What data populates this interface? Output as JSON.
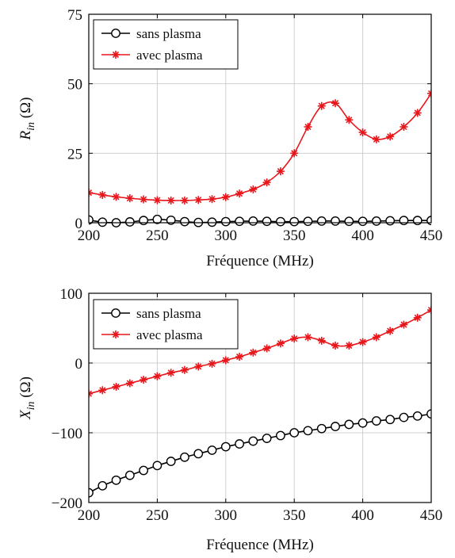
{
  "chart_data": [
    {
      "type": "line",
      "xlabel": "Fréquence (MHz)",
      "ylabel_var": "R",
      "ylabel_sub": "in",
      "ylabel_unit": " (Ω)",
      "xlim": [
        200,
        450
      ],
      "ylim": [
        0,
        75
      ],
      "xticks": [
        200,
        250,
        300,
        350,
        400,
        450
      ],
      "yticks": [
        0,
        25,
        50,
        75
      ],
      "grid": true,
      "legend_position": "top-left",
      "series": [
        {
          "name": "sans plasma",
          "color": "#000000",
          "marker": "circle",
          "x": [
            200,
            210,
            220,
            230,
            240,
            250,
            260,
            270,
            280,
            290,
            300,
            310,
            320,
            330,
            340,
            350,
            360,
            370,
            380,
            390,
            400,
            410,
            420,
            430,
            440,
            450
          ],
          "y": [
            1.0,
            0.2,
            0.0,
            0.3,
            0.8,
            1.2,
            0.9,
            0.4,
            0.1,
            0.2,
            0.4,
            0.5,
            0.6,
            0.5,
            0.4,
            0.4,
            0.5,
            0.6,
            0.6,
            0.5,
            0.5,
            0.6,
            0.7,
            0.8,
            0.8,
            0.8
          ]
        },
        {
          "name": "avec plasma",
          "color": "#e8161b",
          "marker": "star",
          "x": [
            200,
            210,
            220,
            230,
            240,
            250,
            260,
            270,
            280,
            290,
            300,
            310,
            320,
            330,
            340,
            350,
            360,
            370,
            380,
            390,
            400,
            410,
            420,
            430,
            440,
            450
          ],
          "y": [
            10.8,
            10.0,
            9.3,
            8.8,
            8.4,
            8.1,
            8.0,
            8.0,
            8.2,
            8.5,
            9.2,
            10.5,
            12.0,
            14.5,
            18.5,
            25.0,
            34.5,
            42.0,
            43.0,
            37.0,
            32.5,
            30.0,
            31.0,
            34.5,
            39.5,
            46.5
          ]
        }
      ]
    },
    {
      "type": "line",
      "xlabel": "Fréquence (MHz)",
      "ylabel_var": "X",
      "ylabel_sub": "in",
      "ylabel_unit": " (Ω)",
      "xlim": [
        200,
        450
      ],
      "ylim": [
        -200,
        100
      ],
      "xticks": [
        200,
        250,
        300,
        350,
        400,
        450
      ],
      "yticks": [
        -200,
        -100,
        0,
        100
      ],
      "grid": true,
      "legend_position": "top-left",
      "series": [
        {
          "name": "sans plasma",
          "color": "#000000",
          "marker": "circle",
          "x": [
            200,
            210,
            220,
            230,
            240,
            250,
            260,
            270,
            280,
            290,
            300,
            310,
            320,
            330,
            340,
            350,
            360,
            370,
            380,
            390,
            400,
            410,
            420,
            430,
            440,
            450
          ],
          "y": [
            -186,
            -176,
            -168,
            -161,
            -154,
            -147,
            -141,
            -135,
            -130,
            -125,
            -120,
            -116,
            -112,
            -108,
            -104,
            -100,
            -97,
            -94,
            -91,
            -88,
            -86,
            -83,
            -81,
            -78,
            -76,
            -73
          ]
        },
        {
          "name": "avec plasma",
          "color": "#e8161b",
          "marker": "star",
          "x": [
            200,
            210,
            220,
            230,
            240,
            250,
            260,
            270,
            280,
            290,
            300,
            310,
            320,
            330,
            340,
            350,
            360,
            370,
            380,
            390,
            400,
            410,
            420,
            430,
            440,
            450
          ],
          "y": [
            -44,
            -39,
            -34,
            -29,
            -24,
            -19,
            -14,
            -10,
            -5,
            -1,
            4,
            9,
            15,
            21,
            28,
            35,
            37,
            32,
            25,
            25,
            30,
            37,
            46,
            55,
            65,
            76
          ]
        }
      ]
    }
  ]
}
